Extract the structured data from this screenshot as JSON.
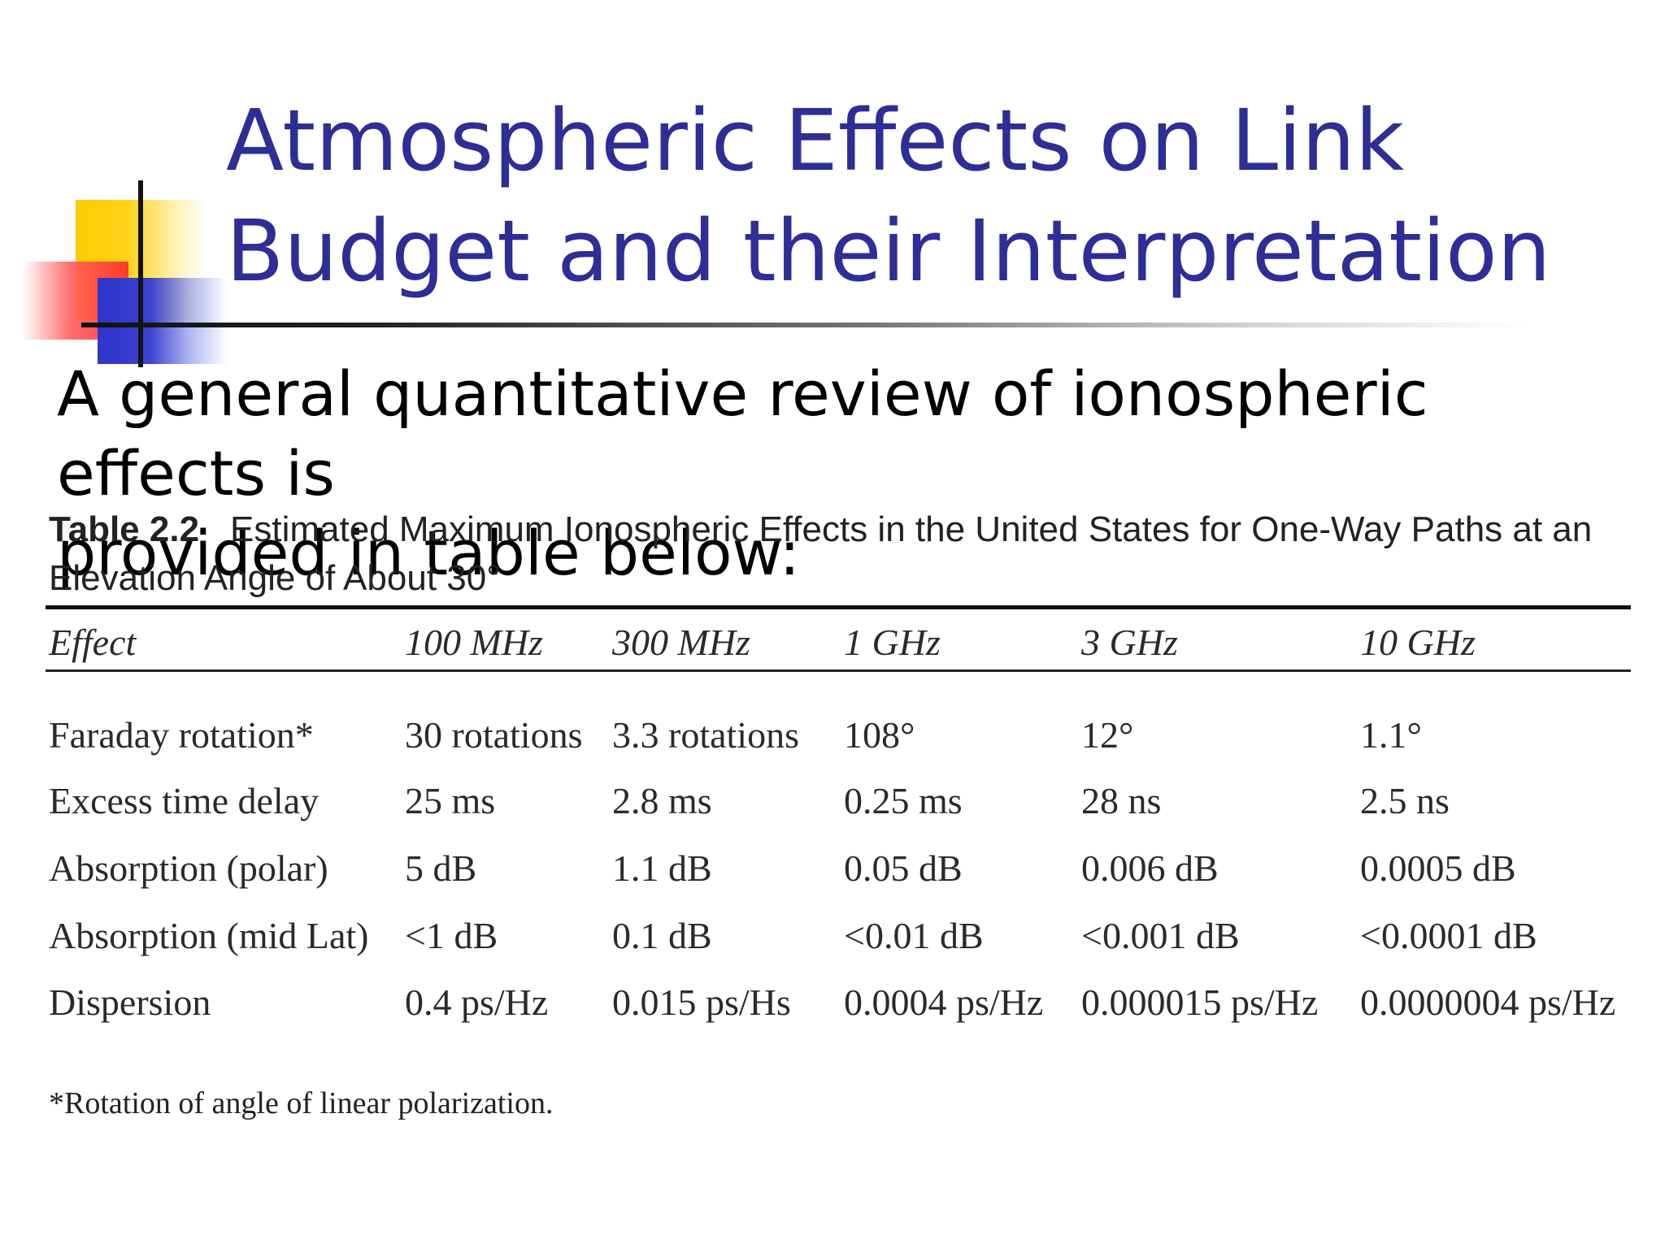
{
  "slide": {
    "title": "Atmospheric Effects on Link\nBudget and their Interpretation",
    "intro": "A general quantitative review of ionospheric effects is\nprovided in table below:"
  },
  "table": {
    "number": "Table 2.2",
    "caption": "Estimated Maximum Ionospheric Effects in the United States for One-Way Paths at an Elevation Angle of About 30°",
    "headers": [
      "Effect",
      "100 MHz",
      "300 MHz",
      "1 GHz",
      "3 GHz",
      "10 GHz"
    ],
    "rows": [
      [
        "Faraday rotation*",
        "30 rotations",
        "3.3 rotations",
        "108°",
        "12°",
        "1.1°"
      ],
      [
        "Excess time delay",
        "25 ms",
        "2.8 ms",
        "0.25 ms",
        "28 ns",
        "2.5 ns"
      ],
      [
        "Absorption (polar)",
        "5 dB",
        "1.1 dB",
        "0.05 dB",
        "0.006 dB",
        "0.0005 dB"
      ],
      [
        "Absorption (mid Lat)",
        "<1 dB",
        "0.1 dB",
        "<0.01 dB",
        "<0.001 dB",
        "<0.0001 dB"
      ],
      [
        "Dispersion",
        "0.4 ps/Hz",
        "0.015 ps/Hs",
        "0.0004 ps/Hz",
        "0.000015 ps/Hz",
        "0.0000004 ps/Hz"
      ]
    ],
    "footnote": "*Rotation of angle of linear polarization."
  },
  "colors": {
    "title": "#2d2e96",
    "accent_yellow": "#ffcc00",
    "accent_red": "#ff2a2a",
    "accent_blue": "#2f35c9"
  }
}
